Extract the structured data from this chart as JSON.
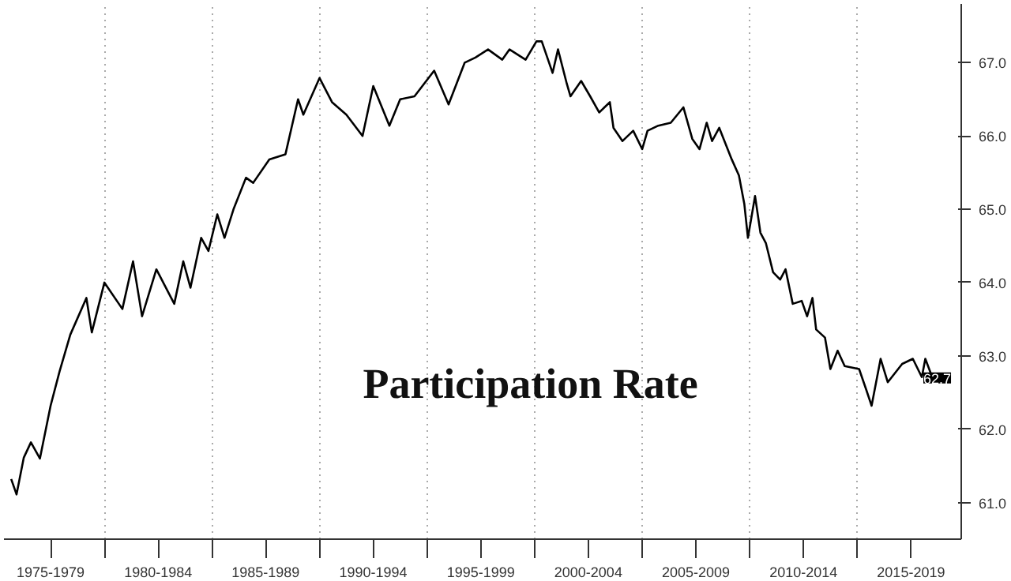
{
  "chart_data": {
    "type": "line",
    "title": "Participation Rate",
    "x": [
      "1975-09",
      "1975-12",
      "1976-04",
      "1976-08",
      "1977-01",
      "1977-07",
      "1977-12",
      "1978-06",
      "1979-03",
      "1979-06",
      "1980-01",
      "1980-11",
      "1981-05",
      "1981-10",
      "1982-06",
      "1983-04",
      "1983-09",
      "1984-01",
      "1984-07",
      "1984-11",
      "1985-04",
      "1985-08",
      "1986-01",
      "1986-08",
      "1986-12",
      "1987-09",
      "1988-06",
      "1989-01",
      "1989-04",
      "1990-01",
      "1990-08",
      "1991-04",
      "1992-01",
      "1992-07",
      "1993-04",
      "1993-10",
      "1994-06",
      "1995-05",
      "1996-01",
      "1996-10",
      "1997-04",
      "1997-11",
      "1998-07",
      "1998-11",
      "1999-08",
      "2000-02",
      "2000-05",
      "2000-11",
      "2001-02",
      "2001-07",
      "2001-09",
      "2002-03",
      "2002-08",
      "2003-01",
      "2003-07",
      "2003-09",
      "2004-02",
      "2004-08",
      "2005-01",
      "2005-04",
      "2005-10",
      "2006-05",
      "2006-12",
      "2007-05",
      "2007-09",
      "2008-01",
      "2008-04",
      "2008-08",
      "2009-03",
      "2009-07",
      "2009-10",
      "2009-12",
      "2010-04",
      "2010-07",
      "2010-10",
      "2011-02",
      "2011-06",
      "2011-09",
      "2012-01",
      "2012-06",
      "2012-09",
      "2012-12",
      "2013-02",
      "2013-07",
      "2013-10",
      "2014-02",
      "2014-06",
      "2015-02",
      "2015-06",
      "2015-09",
      "2016-02",
      "2016-06",
      "2017-02",
      "2017-08",
      "2018-01",
      "2018-03",
      "2018-07"
    ],
    "series": [
      {
        "color": "#000000",
        "values": [
          61.32,
          61.11,
          61.61,
          61.82,
          61.6,
          62.32,
          62.79,
          63.29,
          63.79,
          63.32,
          64.0,
          63.64,
          64.29,
          63.54,
          64.18,
          63.71,
          64.29,
          63.93,
          64.61,
          64.43,
          64.93,
          64.61,
          65.0,
          65.43,
          65.36,
          65.68,
          65.75,
          66.5,
          66.29,
          66.79,
          66.46,
          66.29,
          66.0,
          66.68,
          66.14,
          66.5,
          66.54,
          66.89,
          66.43,
          67.0,
          67.07,
          67.18,
          67.04,
          67.18,
          67.04,
          67.29,
          67.29,
          66.86,
          67.18,
          66.71,
          66.54,
          66.75,
          66.54,
          66.32,
          66.46,
          66.11,
          65.93,
          66.07,
          65.82,
          66.07,
          66.14,
          66.18,
          66.39,
          65.96,
          65.82,
          66.18,
          65.93,
          66.11,
          65.68,
          65.46,
          65.07,
          64.61,
          65.18,
          64.68,
          64.54,
          64.14,
          64.04,
          64.18,
          63.71,
          63.75,
          63.54,
          63.79,
          63.36,
          63.25,
          62.82,
          63.07,
          62.86,
          62.82,
          62.54,
          62.32,
          62.96,
          62.64,
          62.89,
          62.96,
          62.71,
          62.96,
          62.7
        ],
        "value_labels": [
          null,
          null,
          null,
          null,
          null,
          null,
          null,
          null,
          null,
          null,
          null,
          null,
          null,
          null,
          null,
          null,
          null,
          null,
          null,
          null,
          null,
          null,
          null,
          null,
          null,
          null,
          null,
          null,
          null,
          null,
          null,
          null,
          null,
          null,
          null,
          null,
          null,
          null,
          null,
          null,
          null,
          null,
          null,
          null,
          null,
          null,
          null,
          null,
          null,
          null,
          null,
          null,
          null,
          null,
          null,
          null,
          null,
          null,
          null,
          null,
          null,
          null,
          null,
          null,
          null,
          null,
          null,
          null,
          null,
          null,
          null,
          null,
          null,
          null,
          null,
          null,
          null,
          null,
          null,
          null,
          null,
          null,
          null,
          null,
          null,
          null,
          null,
          null,
          null,
          null,
          null,
          null,
          null,
          null,
          null,
          null,
          "62.7"
        ]
      }
    ],
    "xlim": [
      "1975-05",
      "2019-11"
    ],
    "xticks": [
      {
        "value": "1977-07",
        "label": "1975-1979"
      },
      {
        "value": "1980-01",
        "label": null
      },
      {
        "value": "1982-07",
        "label": "1980-1984"
      },
      {
        "value": "1985-01",
        "label": null
      },
      {
        "value": "1987-07",
        "label": "1985-1989"
      },
      {
        "value": "1990-01",
        "label": null
      },
      {
        "value": "1992-07",
        "label": "1990-1994"
      },
      {
        "value": "1995-01",
        "label": null
      },
      {
        "value": "1997-07",
        "label": "1995-1999"
      },
      {
        "value": "2000-01",
        "label": null
      },
      {
        "value": "2002-07",
        "label": "2000-2004"
      },
      {
        "value": "2005-01",
        "label": null
      },
      {
        "value": "2007-07",
        "label": "2005-2009"
      },
      {
        "value": "2010-01",
        "label": null
      },
      {
        "value": "2012-07",
        "label": "2010-2014"
      },
      {
        "value": "2015-01",
        "label": null
      },
      {
        "value": "2017-07",
        "label": "2015-2019"
      }
    ],
    "ylim": [
      60.5,
      67.8
    ],
    "yticks": [
      {
        "value": 61,
        "label": "61.0"
      },
      {
        "value": 62,
        "label": "62.0"
      },
      {
        "value": 63,
        "label": "63.0"
      },
      {
        "value": 64,
        "label": "64.0"
      },
      {
        "value": 65,
        "label": "65.0"
      },
      {
        "value": 66,
        "label": "66.0"
      },
      {
        "value": 67,
        "label": "67.0"
      }
    ],
    "grid": true,
    "marker": "none",
    "line_style": "solid"
  }
}
